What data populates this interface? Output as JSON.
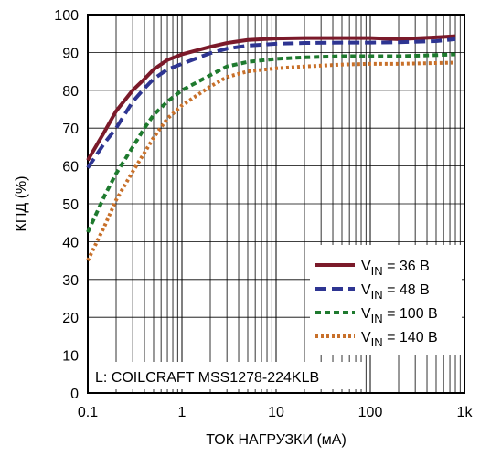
{
  "chart_data": {
    "type": "line",
    "xlabel": "ТОК НАГРУЗКИ (мА)",
    "ylabel": "КПД (%)",
    "xscale": "log",
    "xlim": [
      0.1,
      1000
    ],
    "ylim": [
      0,
      100
    ],
    "x_ticks": [
      {
        "value": 0.1,
        "label": "0.1"
      },
      {
        "value": 1,
        "label": "1"
      },
      {
        "value": 10,
        "label": "10"
      },
      {
        "value": 100,
        "label": "100"
      },
      {
        "value": 1000,
        "label": "1k"
      }
    ],
    "y_ticks": [
      0,
      10,
      20,
      30,
      40,
      50,
      60,
      70,
      80,
      90,
      100
    ],
    "grid": true,
    "legend_position": "bottom-right",
    "annotation": "L: COILCRAFT MSS1278-224KLB",
    "series": [
      {
        "name_main": "V",
        "name_sub": "IN",
        "name_rest": " = 36 В",
        "color": "#7b1a2a",
        "style": "solid",
        "x": [
          0.1,
          0.15,
          0.2,
          0.3,
          0.4,
          0.5,
          0.7,
          1,
          2,
          3,
          5,
          10,
          20,
          50,
          100,
          200,
          500,
          800
        ],
        "y": [
          61.5,
          69,
          74.5,
          80,
          83,
          85.5,
          88,
          89.5,
          91.5,
          92.5,
          93.3,
          93.7,
          93.8,
          93.8,
          93.8,
          93.5,
          94,
          94.3
        ]
      },
      {
        "name_main": "V",
        "name_sub": "IN",
        "name_rest": " = 48 В",
        "color": "#2e3592",
        "style": "dash",
        "x": [
          0.1,
          0.15,
          0.2,
          0.3,
          0.4,
          0.5,
          0.7,
          1,
          2,
          3,
          5,
          10,
          20,
          50,
          100,
          200,
          500,
          800
        ],
        "y": [
          59.5,
          66,
          70,
          77,
          80.5,
          83,
          85.5,
          87,
          89.8,
          91,
          91.8,
          92.3,
          92.5,
          92.6,
          92.6,
          92.7,
          93,
          93.5
        ]
      },
      {
        "name_main": "V",
        "name_sub": "IN",
        "name_rest": " = 100 В",
        "color": "#1e7a2e",
        "style": "dash-short",
        "x": [
          0.1,
          0.15,
          0.2,
          0.3,
          0.4,
          0.5,
          0.7,
          1,
          2,
          3,
          5,
          10,
          20,
          50,
          100,
          200,
          500,
          800
        ],
        "y": [
          42.5,
          52,
          58,
          65,
          70,
          73.5,
          77,
          80,
          84,
          86.3,
          87.5,
          88.3,
          88.7,
          89,
          89,
          89,
          89.3,
          89.5
        ]
      },
      {
        "name_main": "V",
        "name_sub": "IN",
        "name_rest": " = 140 В",
        "color": "#c8702a",
        "style": "dot",
        "x": [
          0.1,
          0.15,
          0.2,
          0.3,
          0.4,
          0.5,
          0.7,
          1,
          2,
          3,
          5,
          10,
          20,
          50,
          100,
          200,
          500,
          800
        ],
        "y": [
          35,
          44,
          51,
          58.5,
          63.5,
          67.5,
          72.5,
          76,
          81,
          83.5,
          85,
          85.8,
          86.3,
          86.8,
          87,
          87,
          87.2,
          87.3
        ]
      }
    ]
  }
}
